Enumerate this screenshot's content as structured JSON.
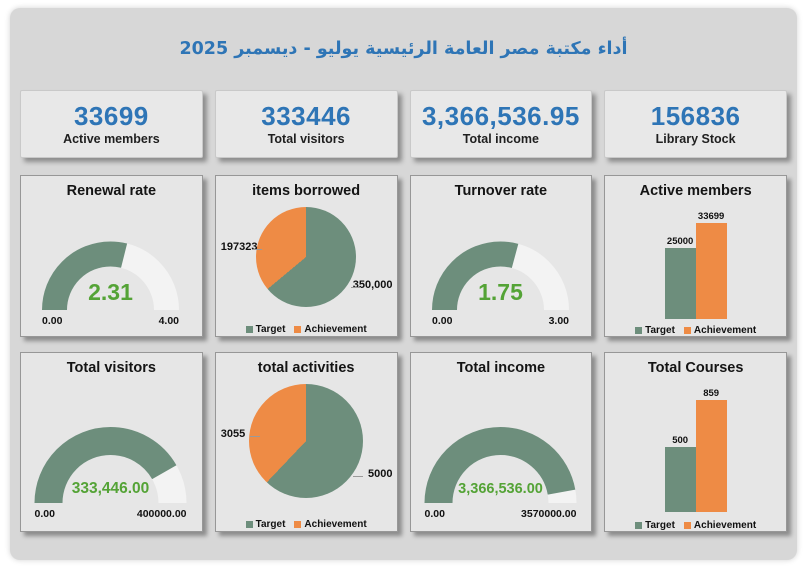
{
  "page": {
    "title": "أداء مكتبة مصر العامة الرئيسية  يوليو - ديسمبر 2025"
  },
  "colors": {
    "accent_blue": "#2E75B6",
    "series_green": "#6D8E7C",
    "series_orange": "#EE8B45",
    "value_green": "#54A336",
    "gauge_track": "#f3f3f3"
  },
  "kpis": [
    {
      "value": "33699",
      "label": "Active members"
    },
    {
      "value": "333446",
      "label": "Total visitors"
    },
    {
      "value": "3,366,536.95",
      "label": "Total income"
    },
    {
      "value": "156836",
      "label": "Library Stock"
    }
  ],
  "legend": {
    "target": "Target",
    "achievement": "Achievement"
  },
  "chart_data": [
    {
      "type": "gauge",
      "title": "Renewal rate",
      "min": 0,
      "max": 4,
      "value": 2.31,
      "display": "2.31",
      "min_label": "0.00",
      "max_label": "4.00"
    },
    {
      "type": "pie",
      "title": "items borrowed",
      "series": [
        "Target",
        "Achievement"
      ],
      "target": 350000,
      "achievement": 197323,
      "target_label": "350,000",
      "achievement_label": "197323"
    },
    {
      "type": "gauge",
      "title": "Turnover rate",
      "min": 0,
      "max": 3,
      "value": 1.75,
      "display": "1.75",
      "min_label": "0.00",
      "max_label": "3.00"
    },
    {
      "type": "bar",
      "title": "Active members",
      "series": [
        "Target",
        "Achievement"
      ],
      "target": 25000,
      "achievement": 33699,
      "target_label": "25000",
      "achievement_label": "33699"
    },
    {
      "type": "gauge",
      "title": "Total visitors",
      "min": 0,
      "max": 400000,
      "value": 333446,
      "display": "333,446.00",
      "min_label": "0.00",
      "max_label": "400000.00"
    },
    {
      "type": "pie",
      "title": "total activities",
      "series": [
        "Target",
        "Achievement"
      ],
      "target": 5000,
      "achievement": 3055,
      "target_label": "5000",
      "achievement_label": "3055"
    },
    {
      "type": "gauge",
      "title": "Total income",
      "min": 0,
      "max": 3570000,
      "value": 3366536,
      "display": "3,366,536.00",
      "min_label": "0.00",
      "max_label": "3570000.00"
    },
    {
      "type": "bar",
      "title": "Total Courses",
      "series": [
        "Target",
        "Achievement"
      ],
      "target": 500,
      "achievement": 859,
      "target_label": "500",
      "achievement_label": "859"
    }
  ]
}
